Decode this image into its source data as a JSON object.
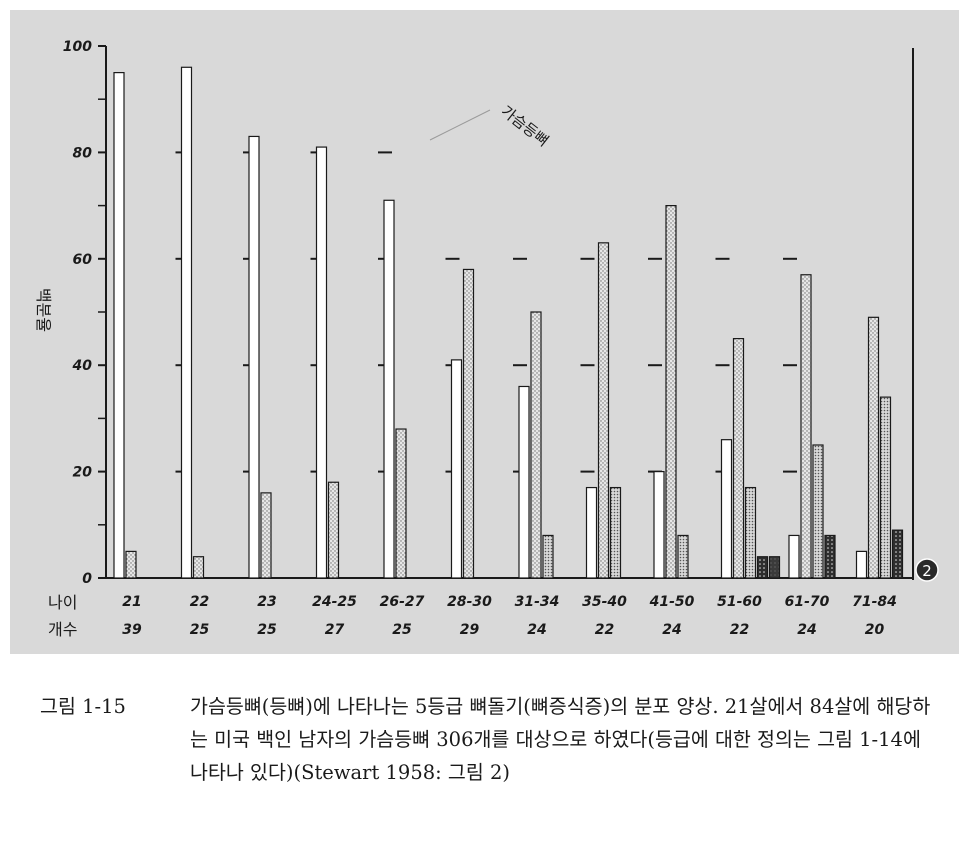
{
  "chart_data": {
    "type": "bar",
    "ylabel": "백분율",
    "ylim": [
      0,
      100
    ],
    "yticks": [
      "0",
      "20",
      "40",
      "60",
      "80",
      "100"
    ],
    "annotation": "가슴등뼈",
    "row_labels": {
      "age": "나이",
      "count": "개수"
    },
    "categories": [
      "21",
      "22",
      "23",
      "24-25",
      "26-27",
      "28-30",
      "31-34",
      "35-40",
      "41-50",
      "51-60",
      "61-70",
      "71-84"
    ],
    "counts": [
      "39",
      "25",
      "25",
      "27",
      "25",
      "29",
      "24",
      "22",
      "24",
      "22",
      "24",
      "20"
    ],
    "series": [
      {
        "values": [
          95,
          96,
          83,
          81,
          71,
          41,
          36,
          17,
          20,
          26,
          8,
          5
        ]
      },
      {
        "values": [
          5,
          4,
          16,
          18,
          28,
          58,
          50,
          63,
          70,
          45,
          57,
          49
        ]
      },
      {
        "values": [
          0,
          0,
          0,
          0,
          0,
          0,
          8,
          17,
          8,
          17,
          25,
          34
        ]
      },
      {
        "values": [
          0,
          0,
          0,
          0,
          0,
          0,
          0,
          0,
          0,
          4,
          8,
          9
        ]
      },
      {
        "values": [
          0,
          0,
          0,
          0,
          0,
          0,
          0,
          0,
          0,
          4,
          0,
          0
        ]
      }
    ],
    "colors": [
      "#ffffff",
      "#c8c8c8",
      "#bdbdbd",
      "#4d4d4d",
      "#333333"
    ],
    "marker": "2"
  },
  "caption": {
    "label": "그림 1-15",
    "body": "가슴등뼈(등뼈)에 나타나는 5등급 뼈돌기(뼈증식증)의 분포 양상. 21살에서 84살에 해당하는 미국 백인 남자의 가슴등뼈 306개를 대상으로 하였다(등급에 대한 정의는 그림 1-14에 나타나 있다)(Stewart 1958: 그림 2)"
  }
}
